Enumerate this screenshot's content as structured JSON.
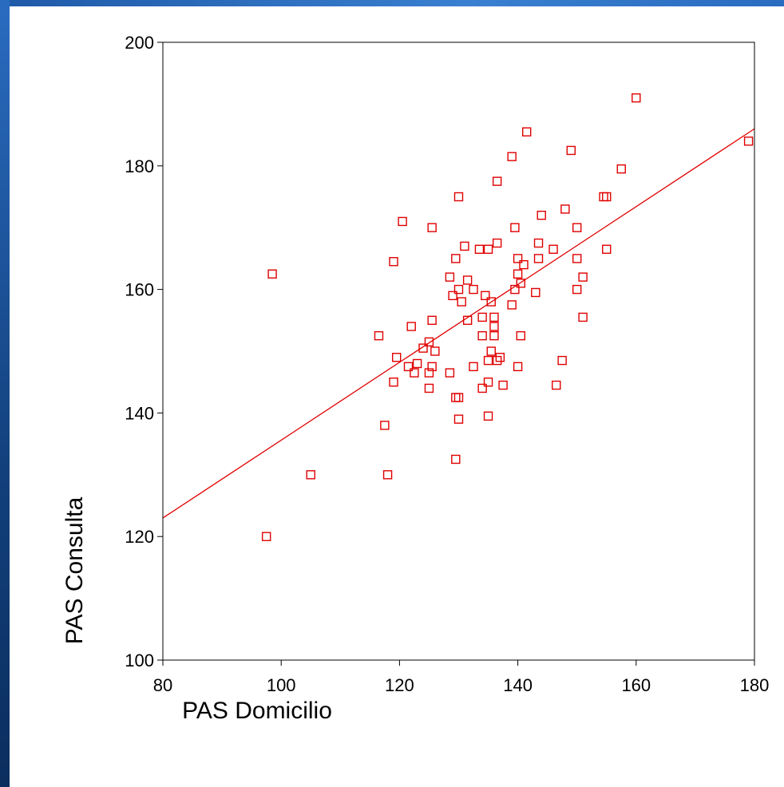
{
  "chart_data": {
    "type": "scatter",
    "title": "",
    "xlabel": "PAS Domicilio",
    "ylabel": "PAS Consulta",
    "xlim": [
      80,
      180
    ],
    "ylim": [
      100,
      200
    ],
    "xticks": [
      "80",
      "100",
      "120",
      "140",
      "160",
      "180"
    ],
    "yticks": [
      "100",
      "120",
      "140",
      "160",
      "180",
      "200"
    ],
    "grid": false,
    "marker_color": "#e00000",
    "line_color": "#e00000",
    "fit_line": {
      "x": [
        80,
        180
      ],
      "y": [
        123,
        186
      ]
    },
    "points": [
      [
        97.5,
        120
      ],
      [
        98.5,
        162.5
      ],
      [
        105,
        130
      ],
      [
        116.5,
        152.5
      ],
      [
        117.5,
        138
      ],
      [
        118,
        130
      ],
      [
        119,
        145
      ],
      [
        119,
        164.5
      ],
      [
        119.5,
        149
      ],
      [
        120.5,
        171
      ],
      [
        121.5,
        147.5
      ],
      [
        122,
        154
      ],
      [
        122.5,
        146.5
      ],
      [
        123,
        148
      ],
      [
        124,
        150.5
      ],
      [
        125,
        146.5
      ],
      [
        125,
        144
      ],
      [
        125,
        151.5
      ],
      [
        125.5,
        147.5
      ],
      [
        125.5,
        155
      ],
      [
        125.5,
        170
      ],
      [
        126,
        150
      ],
      [
        128.5,
        162
      ],
      [
        128.5,
        146.5
      ],
      [
        129,
        159
      ],
      [
        129.5,
        165
      ],
      [
        129.5,
        142.5
      ],
      [
        129.5,
        132.5
      ],
      [
        130,
        160
      ],
      [
        130,
        142.5
      ],
      [
        130,
        139
      ],
      [
        130,
        175
      ],
      [
        130.5,
        158
      ],
      [
        131,
        167
      ],
      [
        131.5,
        155
      ],
      [
        131.5,
        161.5
      ],
      [
        132.5,
        160
      ],
      [
        132.5,
        147.5
      ],
      [
        133.5,
        166.5
      ],
      [
        134,
        155.5
      ],
      [
        134,
        152.5
      ],
      [
        134,
        144
      ],
      [
        134.5,
        159
      ],
      [
        135,
        166.5
      ],
      [
        135,
        148.5
      ],
      [
        135,
        145
      ],
      [
        135,
        139.5
      ],
      [
        135.5,
        150
      ],
      [
        135.5,
        158
      ],
      [
        136,
        155.5
      ],
      [
        136,
        154
      ],
      [
        136,
        152.5
      ],
      [
        136.5,
        148.5
      ],
      [
        136.5,
        167.5
      ],
      [
        136.5,
        177.5
      ],
      [
        137,
        149
      ],
      [
        137.5,
        144.5
      ],
      [
        139,
        181.5
      ],
      [
        139,
        157.5
      ],
      [
        139.5,
        160
      ],
      [
        139.5,
        170
      ],
      [
        140,
        165
      ],
      [
        140,
        162.5
      ],
      [
        140,
        147.5
      ],
      [
        140.5,
        161
      ],
      [
        140.5,
        152.5
      ],
      [
        141,
        164
      ],
      [
        141.5,
        185.5
      ],
      [
        143,
        159.5
      ],
      [
        143.5,
        167.5
      ],
      [
        143.5,
        165
      ],
      [
        144,
        172
      ],
      [
        146,
        166.5
      ],
      [
        146.5,
        144.5
      ],
      [
        147.5,
        148.5
      ],
      [
        148,
        173
      ],
      [
        149,
        182.5
      ],
      [
        150,
        170
      ],
      [
        150,
        165
      ],
      [
        150,
        160
      ],
      [
        151,
        162
      ],
      [
        151,
        155.5
      ],
      [
        154.5,
        175
      ],
      [
        155,
        175
      ],
      [
        155,
        166.5
      ],
      [
        157.5,
        179.5
      ],
      [
        160,
        191
      ],
      [
        179,
        184
      ]
    ]
  }
}
